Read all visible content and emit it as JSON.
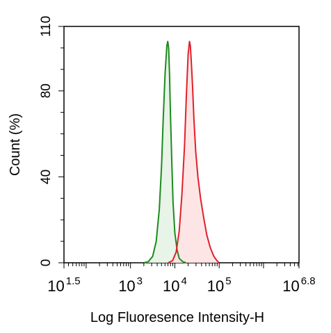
{
  "chart_data": {
    "type": "area",
    "title": "",
    "xlabel": "Log Fluoresence Intensity-H",
    "ylabel": "Count  (%)",
    "x_scale": "log10",
    "xlim": [
      1.5,
      6.8
    ],
    "ylim": [
      0,
      110
    ],
    "grid": false,
    "x_ticks": [
      {
        "base": "10",
        "exp": "1.5",
        "pos": 1.5
      },
      {
        "base": "10",
        "exp": "3",
        "pos": 3
      },
      {
        "base": "10",
        "exp": "4",
        "pos": 4
      },
      {
        "base": "10",
        "exp": "5",
        "pos": 5
      },
      {
        "base": "10",
        "exp": "6.8",
        "pos": 6.8
      }
    ],
    "y_ticks": [
      0,
      40,
      80,
      110
    ],
    "series": [
      {
        "color": "#1e8a1e",
        "fill": "#e3f2e3",
        "x": [
          3.3,
          3.4,
          3.5,
          3.58,
          3.65,
          3.7,
          3.74,
          3.78,
          3.82,
          3.84,
          3.86,
          3.88,
          3.9,
          3.93,
          3.96,
          4.0,
          4.05,
          4.1,
          4.18,
          4.25
        ],
        "y": [
          0,
          0.5,
          3,
          10,
          25,
          45,
          68,
          88,
          101,
          103,
          100,
          88,
          70,
          48,
          28,
          14,
          6,
          2,
          0.5,
          0
        ]
      },
      {
        "color": "#e0202a",
        "fill": "#fde0e2",
        "x": [
          3.85,
          3.95,
          4.03,
          4.1,
          4.16,
          4.22,
          4.26,
          4.3,
          4.33,
          4.35,
          4.37,
          4.4,
          4.43,
          4.47,
          4.52,
          4.58,
          4.65,
          4.72,
          4.8,
          4.88,
          4.95,
          5.0
        ],
        "y": [
          0,
          1,
          5,
          15,
          32,
          55,
          78,
          97,
          103,
          101,
          94,
          82,
          67,
          52,
          40,
          30,
          21,
          13,
          7,
          3,
          1,
          0
        ]
      }
    ]
  }
}
